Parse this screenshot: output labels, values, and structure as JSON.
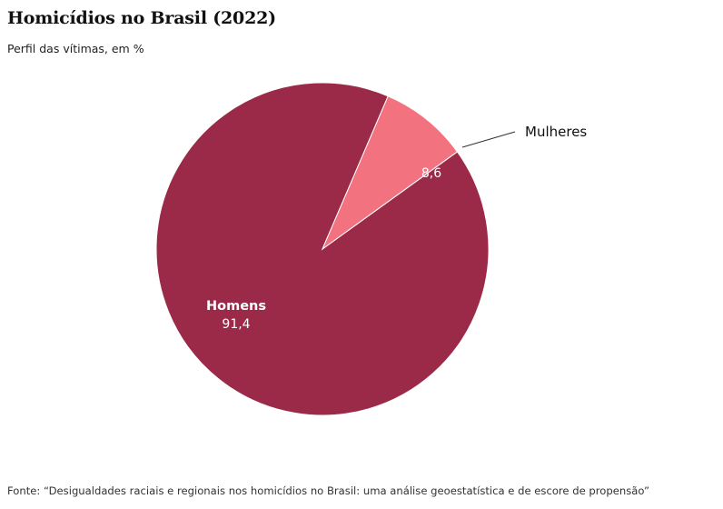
{
  "title": "Homicídios no Brasil (2022)",
  "subtitle": "Perfil das vítimas, em %",
  "source": "Fonte: “Desigualdades raciais e regionais nos homicídios no Brasil: uma análise geoestatística e de escore de propensão”",
  "chart_data": {
    "type": "pie",
    "title": "Homicídios no Brasil (2022)",
    "subtitle": "Perfil das vítimas, em %",
    "slices": [
      {
        "label": "Homens",
        "value": 91.4,
        "value_label": "91,4",
        "color": "#9b2a49"
      },
      {
        "label": "Mulheres",
        "value": 8.6,
        "value_label": "8,6",
        "color": "#f2737f"
      }
    ],
    "legend": "none"
  }
}
